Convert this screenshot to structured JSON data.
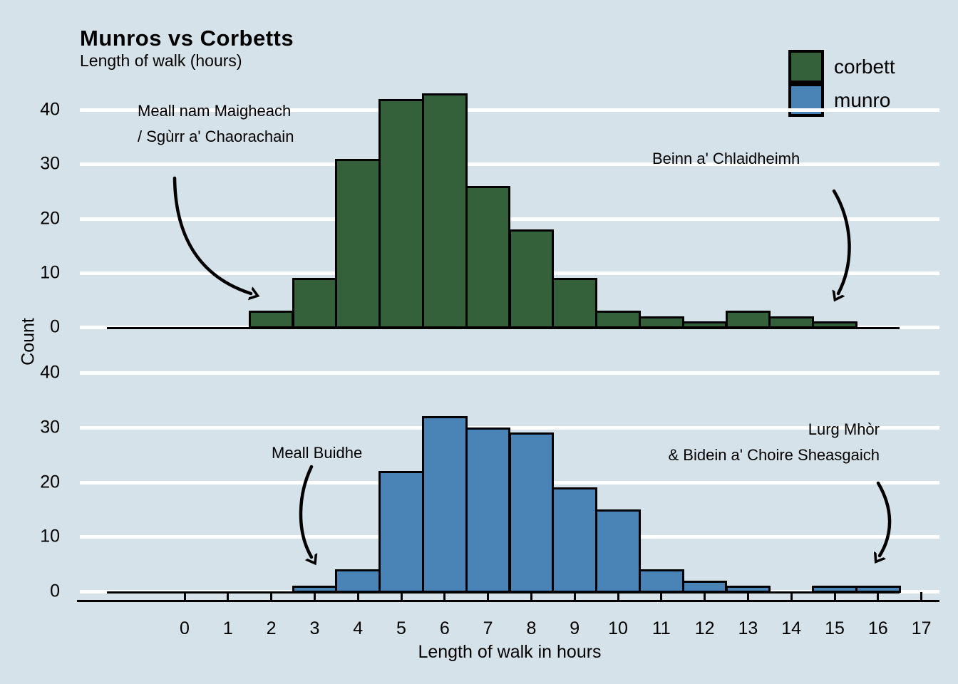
{
  "title": "Munros vs Corbetts",
  "subtitle": "Length of walk (hours)",
  "legend": {
    "items": [
      {
        "label": "corbett",
        "color": "#35613a"
      },
      {
        "label": "munro",
        "color": "#4a83b5"
      }
    ]
  },
  "axes": {
    "x_title": "Length of walk in hours",
    "y_title": "Count",
    "x_ticks": [
      0,
      1,
      2,
      3,
      4,
      5,
      6,
      7,
      8,
      9,
      10,
      11,
      12,
      13,
      14,
      15,
      16,
      17
    ],
    "y_ticks": [
      0,
      10,
      20,
      30,
      40
    ]
  },
  "annotations": [
    {
      "id": "meall-nam-maigheach",
      "lines": [
        "Meall nam Maigheach",
        "/ Sgùrr a' Chaorachain"
      ]
    },
    {
      "id": "beinn-a-chlaidheimh",
      "lines": [
        "Beinn a' Chlaidheimh"
      ]
    },
    {
      "id": "meall-buidhe",
      "lines": [
        "Meall Buidhe"
      ]
    },
    {
      "id": "lurg-mhor",
      "lines": [
        "Lurg Mhòr",
        "& Bidein a' Choire Sheasgaich"
      ]
    }
  ],
  "chart_data": {
    "type": "bar",
    "subtype": "faceted histogram, stacked vertically by category",
    "title": "Munros vs Corbetts",
    "subtitle": "Length of walk (hours)",
    "xlabel": "Length of walk in hours",
    "ylabel": "Count",
    "bin_width": 1,
    "x_tick_range": [
      0,
      17
    ],
    "ylim_per_panel": [
      0,
      45
    ],
    "y_gridlines": [
      0,
      10,
      20,
      30,
      40
    ],
    "grid": "white horizontal gridlines on light blue background",
    "legend_position": "top-right",
    "series": [
      {
        "name": "corbett",
        "panel": "top",
        "color": "#35613a",
        "bin_centers": [
          2,
          3,
          4,
          5,
          6,
          7,
          8,
          9,
          10,
          11,
          12,
          13,
          14,
          15
        ],
        "counts": [
          3,
          9,
          31,
          42,
          43,
          26,
          18,
          9,
          3,
          2,
          1,
          3,
          2,
          1
        ]
      },
      {
        "name": "munro",
        "panel": "bottom",
        "color": "#4a83b5",
        "bin_centers": [
          3,
          4,
          5,
          6,
          7,
          8,
          9,
          10,
          11,
          12,
          13,
          14,
          15,
          16
        ],
        "counts": [
          1,
          4,
          22,
          32,
          30,
          29,
          19,
          15,
          4,
          2,
          1,
          0,
          1,
          1
        ]
      }
    ]
  }
}
